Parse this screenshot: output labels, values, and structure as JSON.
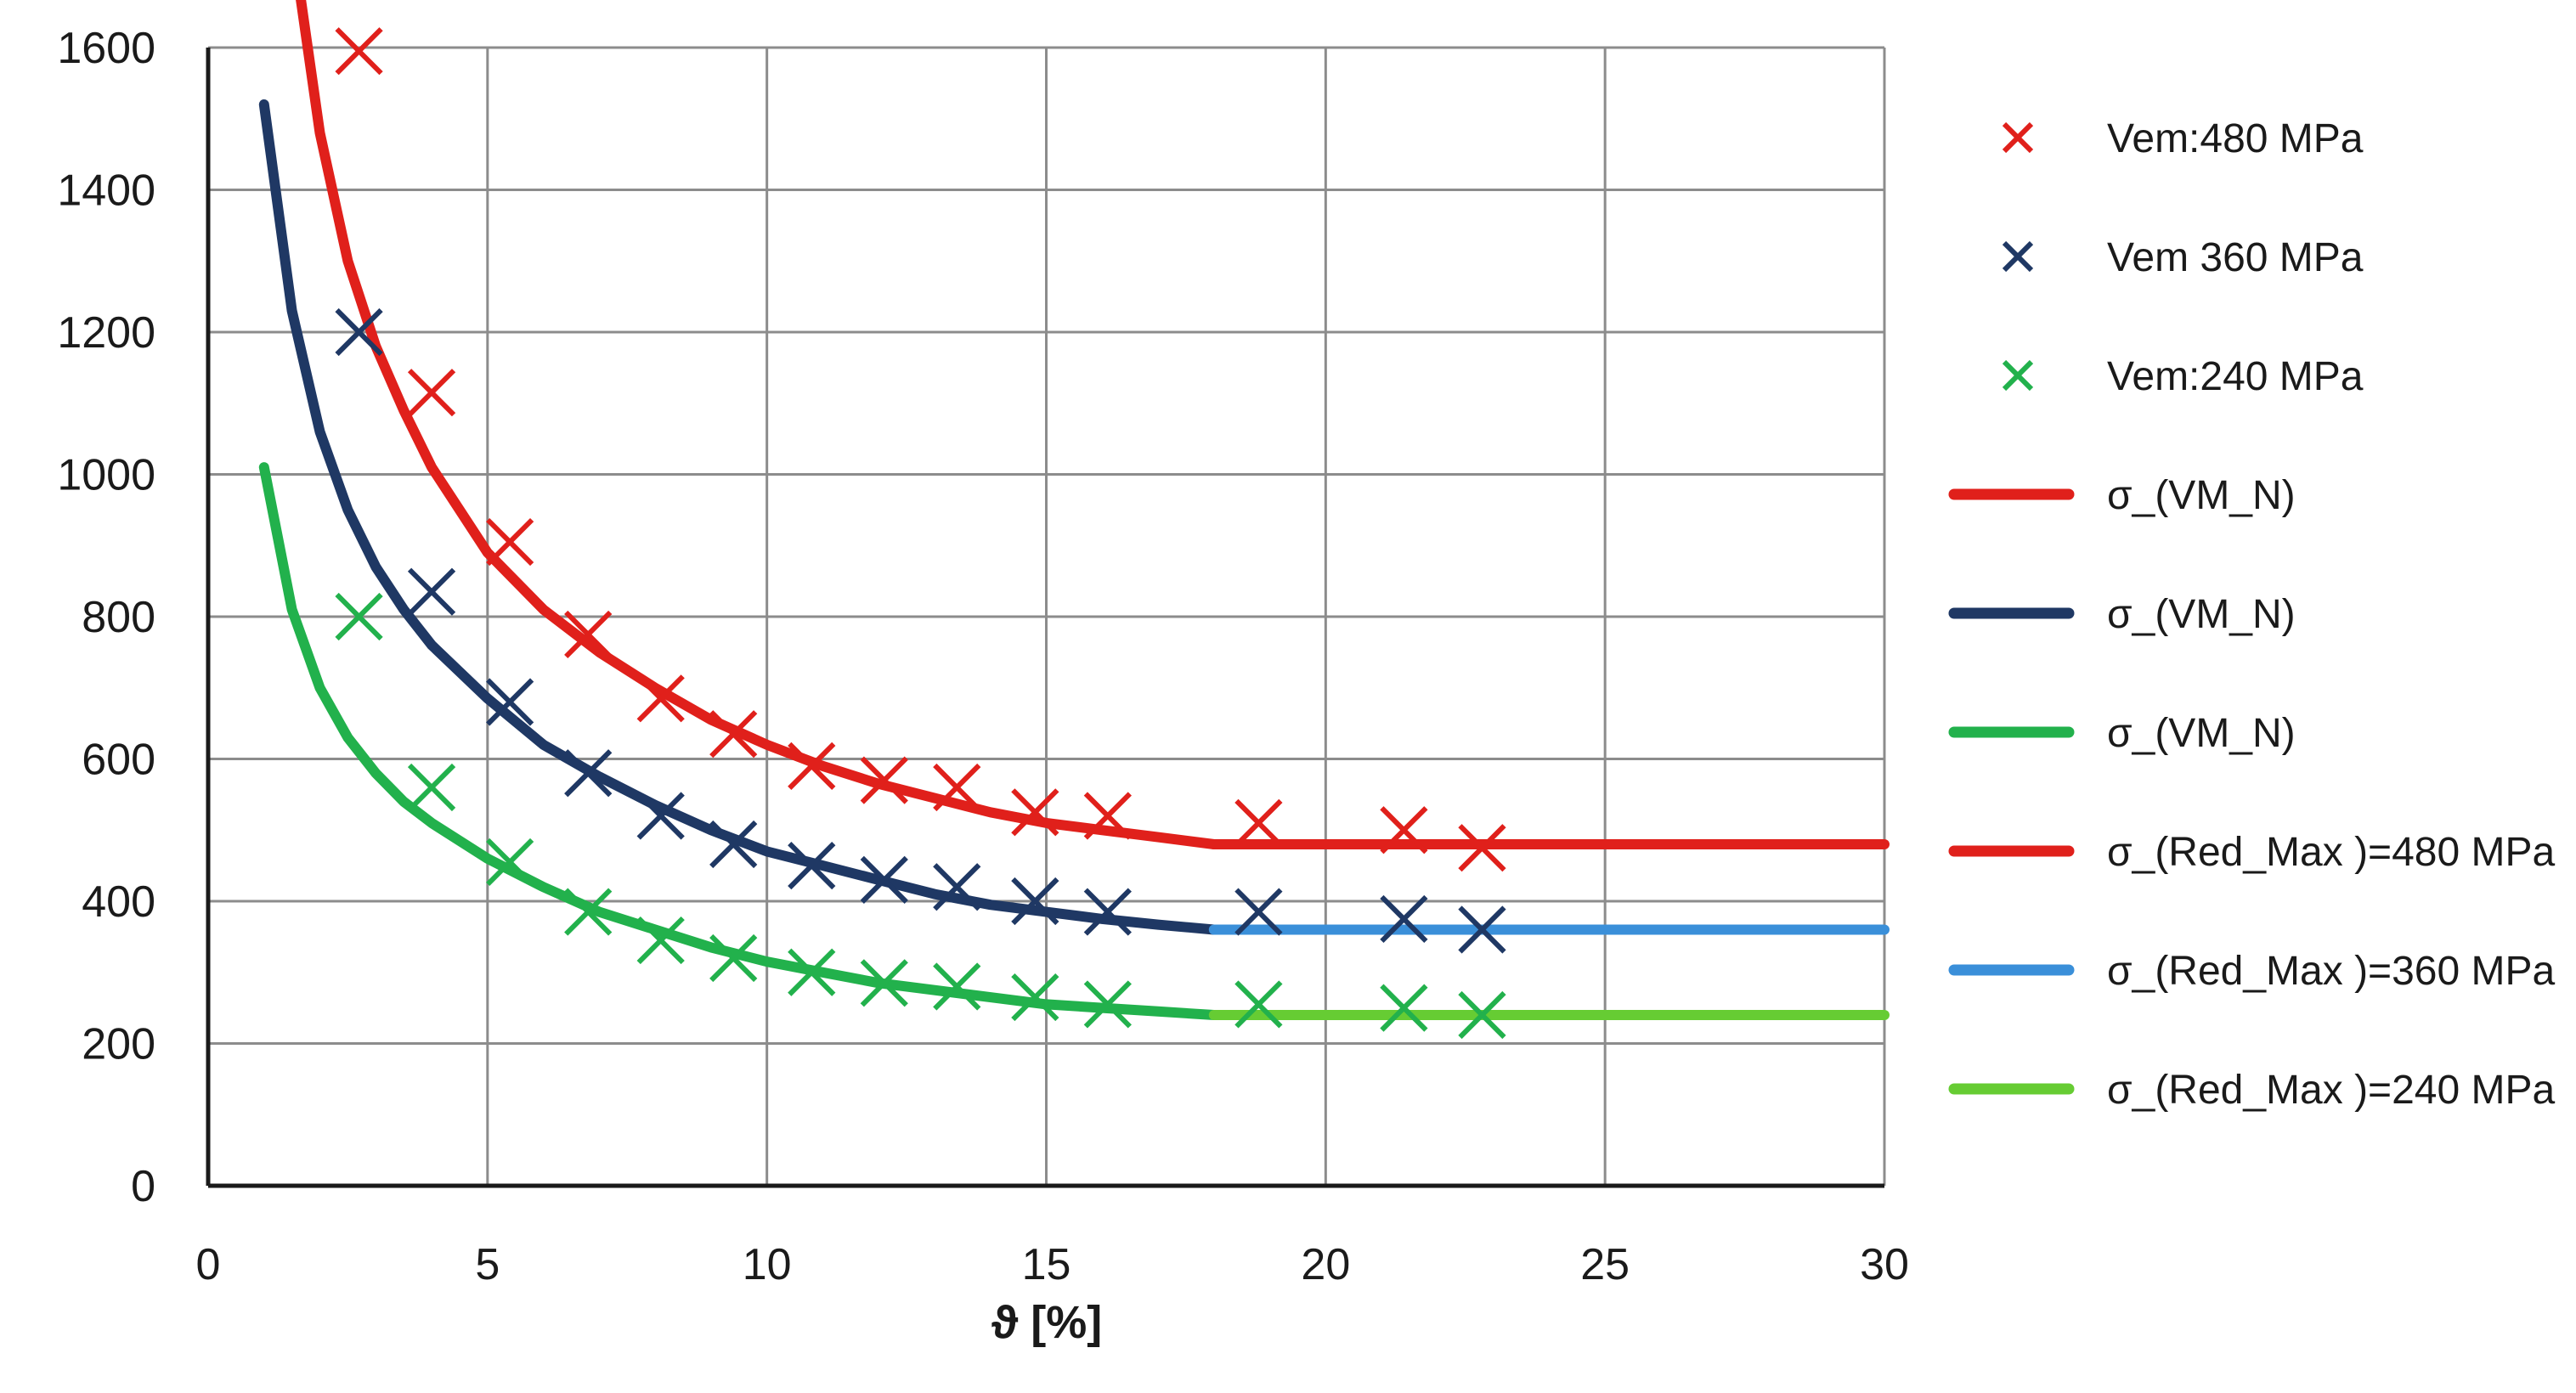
{
  "chart_data": {
    "type": "scatter",
    "title": "",
    "xlabel": "ϑ [%]",
    "ylabel": "",
    "xlim": [
      0,
      30
    ],
    "ylim": [
      0,
      1600
    ],
    "x_ticks": [
      0,
      5,
      10,
      15,
      20,
      25,
      30
    ],
    "y_ticks": [
      0,
      200,
      400,
      600,
      800,
      1000,
      1200,
      1400,
      1600
    ],
    "grid": true,
    "legend_position": "right",
    "scatter_series": [
      {
        "name": "Vem:480 MPa",
        "color": "#e0201b",
        "marker": "x",
        "points": [
          [
            2.7,
            1595
          ],
          [
            4.0,
            1115
          ],
          [
            5.4,
            905
          ],
          [
            6.8,
            775
          ],
          [
            8.1,
            685
          ],
          [
            9.4,
            635
          ],
          [
            10.8,
            590
          ],
          [
            12.1,
            570
          ],
          [
            13.4,
            560
          ],
          [
            14.8,
            525
          ],
          [
            16.1,
            520
          ],
          [
            18.8,
            510
          ],
          [
            21.4,
            500
          ],
          [
            22.8,
            475
          ]
        ]
      },
      {
        "name": "Vem 360 MPa",
        "color": "#1f3864",
        "marker": "x",
        "points": [
          [
            2.7,
            1200
          ],
          [
            4.0,
            835
          ],
          [
            5.4,
            680
          ],
          [
            6.8,
            580
          ],
          [
            8.1,
            520
          ],
          [
            9.4,
            480
          ],
          [
            10.8,
            450
          ],
          [
            12.1,
            430
          ],
          [
            13.4,
            420
          ],
          [
            14.8,
            400
          ],
          [
            16.1,
            385
          ],
          [
            18.8,
            385
          ],
          [
            21.4,
            375
          ],
          [
            22.8,
            360
          ]
        ]
      },
      {
        "name": "Vem:240 MPa",
        "color": "#22b14c",
        "marker": "x",
        "points": [
          [
            2.7,
            800
          ],
          [
            4.0,
            560
          ],
          [
            5.4,
            455
          ],
          [
            6.8,
            385
          ],
          [
            8.1,
            345
          ],
          [
            9.4,
            320
          ],
          [
            10.8,
            300
          ],
          [
            12.1,
            285
          ],
          [
            13.4,
            280
          ],
          [
            14.8,
            265
          ],
          [
            16.1,
            255
          ],
          [
            18.8,
            255
          ],
          [
            21.4,
            250
          ],
          [
            22.8,
            240
          ]
        ]
      }
    ],
    "line_series": [
      {
        "name": "σ_(VM_N)",
        "color": "#e0201b",
        "x": [
          1.6,
          2.0,
          2.5,
          3.0,
          3.5,
          4.0,
          5.0,
          6.0,
          7.0,
          8.0,
          9.0,
          10.0,
          11.0,
          12.0,
          13.0,
          14.0,
          15.0,
          16.0,
          17.0,
          18.0
        ],
        "y": [
          1700,
          1480,
          1300,
          1180,
          1090,
          1010,
          890,
          810,
          750,
          700,
          655,
          620,
          590,
          565,
          545,
          525,
          510,
          500,
          490,
          480
        ]
      },
      {
        "name": "σ_(VM_N)",
        "color": "#1f3864",
        "x": [
          1.0,
          1.5,
          2.0,
          2.5,
          3.0,
          3.5,
          4.0,
          5.0,
          6.0,
          7.0,
          8.0,
          9.0,
          10.0,
          11.0,
          12.0,
          13.0,
          14.0,
          15.0,
          16.0,
          17.0,
          18.0
        ],
        "y": [
          1520,
          1230,
          1060,
          950,
          870,
          810,
          760,
          685,
          620,
          575,
          535,
          500,
          470,
          450,
          430,
          410,
          395,
          385,
          375,
          367,
          360
        ]
      },
      {
        "name": "σ_(VM_N)",
        "color": "#22b14c",
        "x": [
          1.0,
          1.5,
          2.0,
          2.5,
          3.0,
          3.5,
          4.0,
          5.0,
          6.0,
          7.0,
          8.0,
          9.0,
          10.0,
          11.0,
          12.0,
          13.0,
          14.0,
          15.0,
          16.0,
          17.0,
          18.0
        ],
        "y": [
          1010,
          810,
          700,
          630,
          580,
          540,
          510,
          460,
          420,
          385,
          360,
          335,
          315,
          300,
          285,
          275,
          265,
          255,
          250,
          245,
          240
        ]
      },
      {
        "name": "σ_(Red_Max )=480 MPa",
        "color": "#e0201b",
        "x": [
          18.0,
          30.0
        ],
        "y": [
          480,
          480
        ]
      },
      {
        "name": "σ_(Red_Max )=360 MPa",
        "color": "#3a8fd9",
        "x": [
          18.0,
          30.0
        ],
        "y": [
          360,
          360
        ]
      },
      {
        "name": "σ_(Red_Max )=240 MPa",
        "color": "#66cc33",
        "x": [
          18.0,
          30.0
        ],
        "y": [
          240,
          240
        ]
      }
    ]
  }
}
